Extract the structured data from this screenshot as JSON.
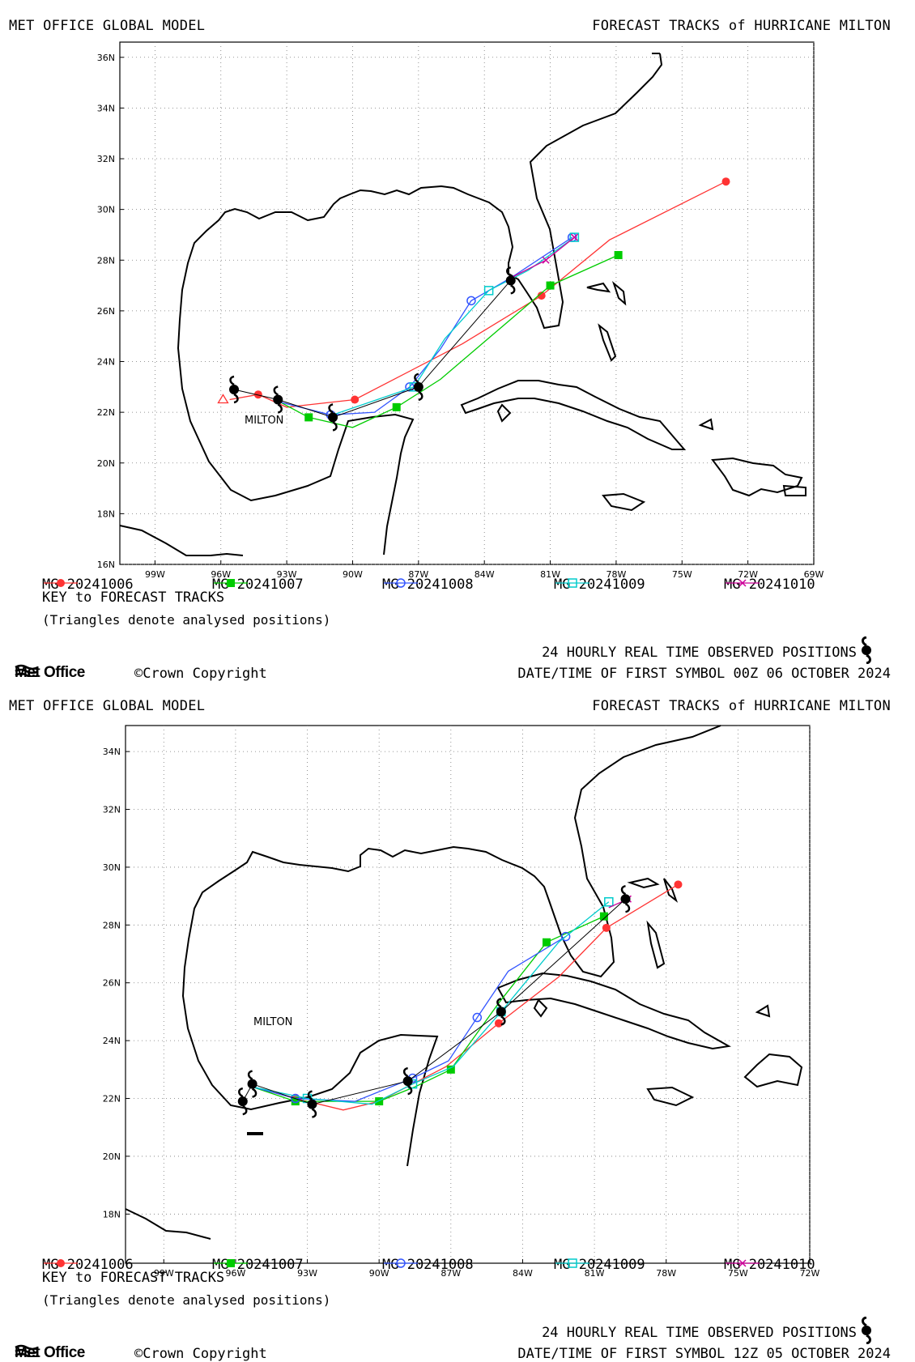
{
  "panels": [
    {
      "header_left": "MET OFFICE GLOBAL MODEL",
      "header_right": "FORECAST TRACKS of HURRICANE MILTON",
      "key_title": "KEY to FORECAST TRACKS",
      "key_note": "(Triangles denote analysed positions)",
      "observed_label": "24 HOURLY REAL TIME OBSERVED POSITIONS",
      "datetime_label": "DATE/TIME OF FIRST SYMBOL 00Z 06 OCTOBER 2024",
      "logo_text": "Met Office",
      "copyright": "©Crown Copyright",
      "storm_label": "MILTON",
      "lon_ticks": [
        "99W",
        "96W",
        "93W",
        "90W",
        "87W",
        "84W",
        "81W",
        "78W",
        "75W",
        "72W",
        "69W"
      ],
      "lat_ticks": [
        "16N",
        "18N",
        "20N",
        "22N",
        "24N",
        "26N",
        "28N",
        "30N",
        "32N",
        "34N",
        "36N"
      ],
      "lon_range": [
        -100.6,
        -69
      ],
      "lat_range": [
        16,
        36.6
      ]
    },
    {
      "header_left": "MET OFFICE GLOBAL MODEL",
      "header_right": "FORECAST TRACKS of HURRICANE MILTON",
      "key_title": "KEY to FORECAST TRACKS",
      "key_note": "(Triangles denote analysed positions)",
      "observed_label": "24 HOURLY REAL TIME OBSERVED POSITIONS",
      "datetime_label": "DATE/TIME OF FIRST SYMBOL 12Z 05 OCTOBER 2024",
      "logo_text": "Met Office",
      "copyright": "©Crown Copyright",
      "storm_label": "MILTON",
      "lon_ticks": [
        "99W",
        "96W",
        "93W",
        "90W",
        "87W",
        "84W",
        "81W",
        "78W",
        "75W",
        "72W"
      ],
      "lat_ticks": [
        "18N",
        "20N",
        "22N",
        "24N",
        "26N",
        "28N",
        "30N",
        "32N",
        "34N"
      ],
      "lon_range": [
        -100.6,
        -72
      ],
      "lat_range": [
        16.3,
        34.9
      ]
    }
  ],
  "legend": [
    {
      "label": "MG 20241006",
      "color": "#ff3333",
      "marker": "filled-circle"
    },
    {
      "label": "MG 20241007",
      "color": "#00cc00",
      "marker": "filled-square"
    },
    {
      "label": "MG 20241008",
      "color": "#3355ff",
      "marker": "open-circle"
    },
    {
      "label": "MG 20241009",
      "color": "#00cccc",
      "marker": "open-square"
    },
    {
      "label": "MG 20241010",
      "color": "#cc0099",
      "marker": "cross"
    }
  ],
  "chart_data": [
    {
      "type": "map-tracks",
      "series": [
        {
          "name": "MG 20241006",
          "lon": [
            -95.6,
            -94.3,
            -93.0,
            -89.9,
            -85.0,
            -81.4,
            -78.3,
            -73.0
          ],
          "lat": [
            22.5,
            22.7,
            22.2,
            22.5,
            24.7,
            26.6,
            28.8,
            31.1
          ]
        },
        {
          "name": "MG 20241007",
          "lon": [
            -93.3,
            -92.0,
            -90.0,
            -88.0,
            -86.0,
            -81.0,
            -77.9
          ],
          "lat": [
            22.4,
            21.8,
            21.4,
            22.2,
            23.3,
            27.0,
            28.2
          ]
        },
        {
          "name": "MG 20241008",
          "lon": [
            -93.3,
            -91.0,
            -89.0,
            -87.4,
            -86.0,
            -84.6,
            -82.8,
            -80.0
          ],
          "lat": [
            22.4,
            21.9,
            22.0,
            23.0,
            24.5,
            26.4,
            27.3,
            28.9
          ]
        },
        {
          "name": "MG 20241009",
          "lon": [
            -90.9,
            -87.2,
            -85.8,
            -83.8,
            -82.0,
            -79.9
          ],
          "lat": [
            21.9,
            23.0,
            24.9,
            26.8,
            27.6,
            28.9
          ]
        },
        {
          "name": "MG 20241010",
          "lon": [
            -82.8,
            -81.2,
            -79.9
          ],
          "lat": [
            27.3,
            28.0,
            28.9
          ]
        }
      ],
      "observed": {
        "lon": [
          -95.4,
          -93.4,
          -90.9,
          -87.0,
          -82.8
        ],
        "lat": [
          22.9,
          22.5,
          21.8,
          23.0,
          27.2
        ]
      },
      "analysed_triangle": {
        "lon": -95.9,
        "lat": 22.5
      }
    },
    {
      "type": "map-tracks",
      "series": [
        {
          "name": "MG 20241006",
          "lon": [
            -95.3,
            -93.5,
            -91.5,
            -90.0,
            -87.2,
            -85.0,
            -82.5,
            -80.5,
            -77.5
          ],
          "lat": [
            22.4,
            22.0,
            21.6,
            21.9,
            23.1,
            24.6,
            26.2,
            27.9,
            29.4
          ]
        },
        {
          "name": "MG 20241007",
          "lon": [
            -95.3,
            -93.5,
            -92.0,
            -90.0,
            -88.5,
            -87.0,
            -85.0,
            -83.0,
            -80.6
          ],
          "lat": [
            22.4,
            21.9,
            21.9,
            21.9,
            22.4,
            23.0,
            25.3,
            27.4,
            28.3
          ]
        },
        {
          "name": "MG 20241008",
          "lon": [
            -95.3,
            -93.5,
            -91.0,
            -88.6,
            -87.1,
            -85.9,
            -84.6,
            -82.2
          ],
          "lat": [
            22.4,
            22.0,
            21.9,
            22.7,
            23.3,
            24.8,
            26.4,
            27.6
          ]
        },
        {
          "name": "MG 20241009",
          "lon": [
            -95.3,
            -93.0,
            -90.3,
            -88.6,
            -86.9,
            -84.9,
            -82.5,
            -80.4
          ],
          "lat": [
            22.4,
            22.0,
            21.8,
            22.5,
            23.1,
            25.0,
            27.4,
            28.8
          ]
        },
        {
          "name": "MG 20241010",
          "lon": [
            -80.4,
            -79.6
          ],
          "lat": [
            28.6,
            28.9
          ]
        }
      ],
      "observed": {
        "lon": [
          -95.7,
          -95.3,
          -92.8,
          -88.8,
          -84.9,
          -79.7
        ],
        "lat": [
          21.9,
          22.5,
          21.8,
          22.6,
          25.0,
          28.9
        ]
      }
    }
  ]
}
